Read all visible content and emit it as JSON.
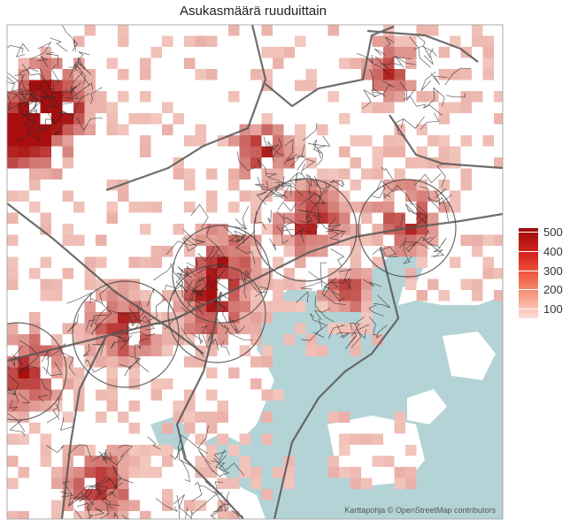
{
  "title": "Asukasmäärä ruuduittain",
  "attribution": "Karttapohja © OpenStreetMap contributors",
  "legend": {
    "ticks": [
      {
        "label": "500",
        "value": 500
      },
      {
        "label": "400",
        "value": 400
      },
      {
        "label": "300",
        "value": 300
      },
      {
        "label": "200",
        "value": 200
      },
      {
        "label": "100",
        "value": 100
      }
    ],
    "min": 50,
    "max": 520
  },
  "colors": {
    "water": "#b4d3d6",
    "roads": "#2a2a2a",
    "boundary": "#555555",
    "scale_high": "#9a0a0a",
    "scale_low": "#fde0d6"
  }
}
